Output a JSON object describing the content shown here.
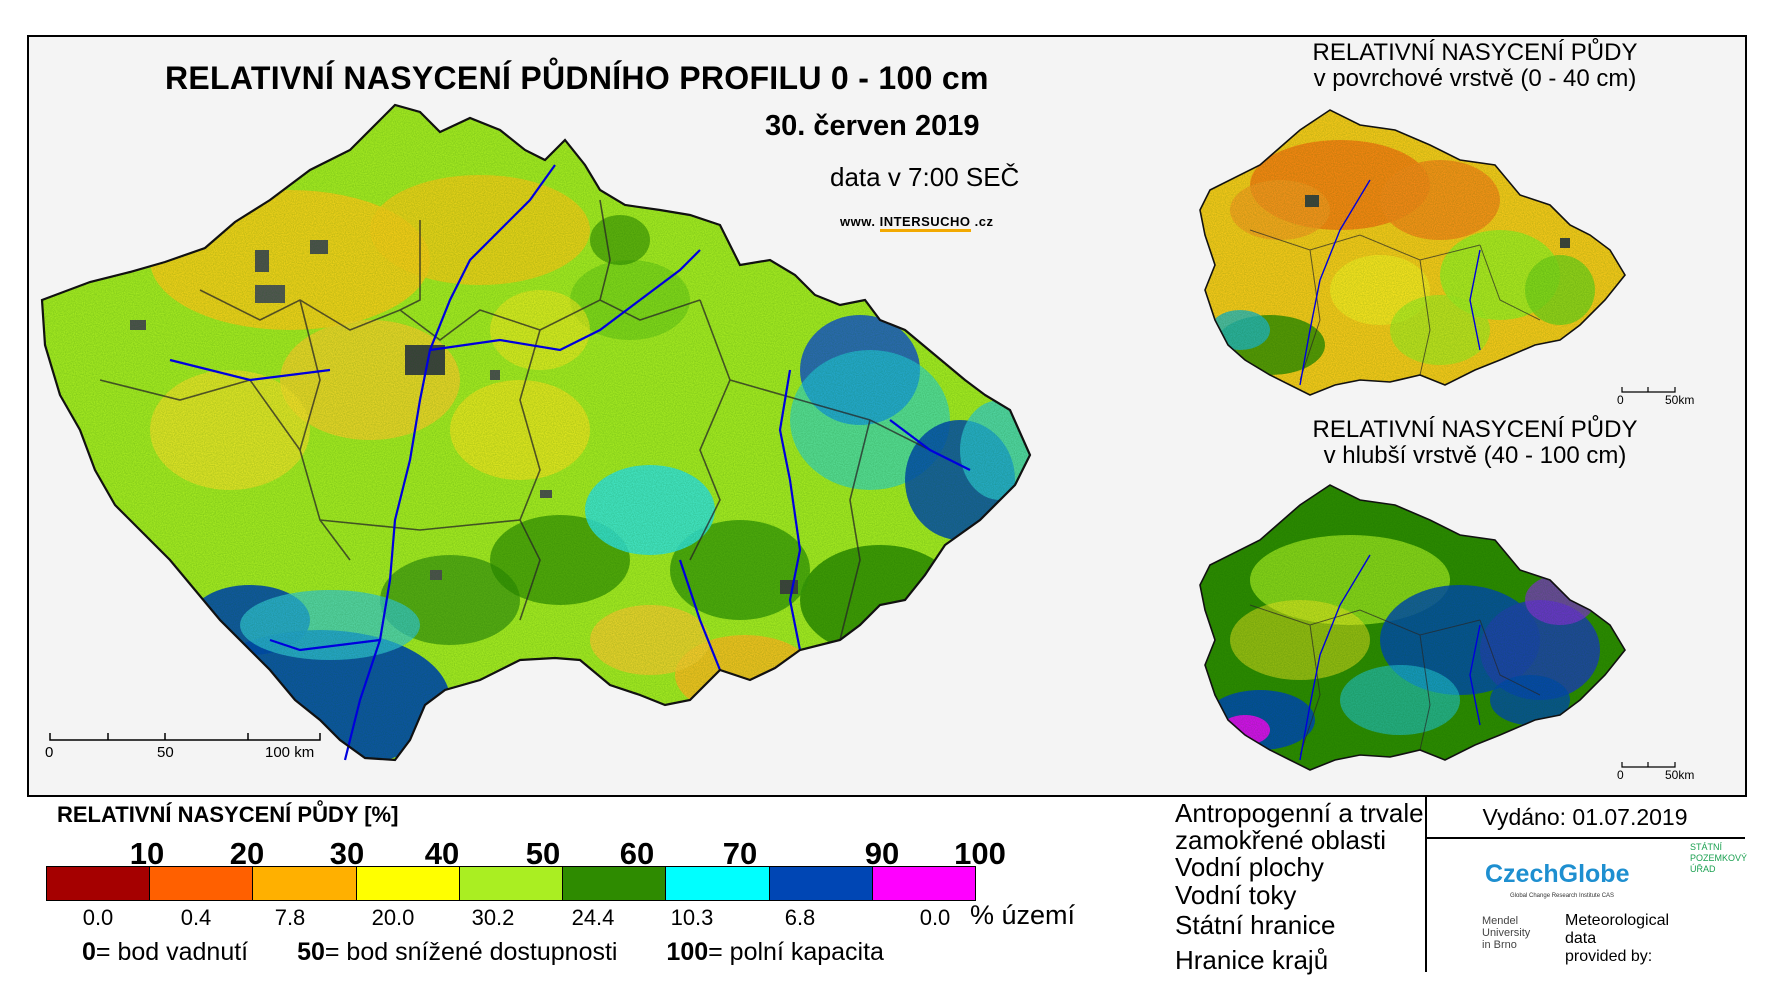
{
  "header": {
    "title": "RELATIVNÍ NASYCENÍ PŮDNÍHO PROFILU 0 - 100 cm",
    "date": "30. červen 2019",
    "time": "data v 7:00 SEČ",
    "url_prefix": "www.",
    "url_brand": "INTERSUCHO",
    "url_suffix": ".cz"
  },
  "submaps": [
    {
      "title_line1": "RELATIVNÍ NASYCENÍ PŮDY",
      "title_line2": "v povrchové vrstvě (0 - 40 cm)",
      "scale_start": "0",
      "scale_end": "50km"
    },
    {
      "title_line1": "RELATIVNÍ NASYCENÍ PŮDY",
      "title_line2": "v hlubší vrstvě (40 - 100 cm)",
      "scale_start": "0",
      "scale_end": "50km"
    }
  ],
  "main_scale": {
    "labels": [
      "0",
      "50",
      "100 km"
    ]
  },
  "legend": {
    "title": "RELATIVNÍ NASYCENÍ PŮDY [%]",
    "ticks": [
      "10",
      "20",
      "30",
      "40",
      "50",
      "60",
      "70",
      "90",
      "100"
    ],
    "colors": [
      "#a50000",
      "#ff6000",
      "#ffb000",
      "#ffff00",
      "#aaee22",
      "#2e8b00",
      "#00ffff",
      "#0046b4",
      "#ff00ff"
    ],
    "percent_values": [
      "0.0",
      "0.4",
      "7.8",
      "20.0",
      "30.2",
      "24.4",
      "10.3",
      "6.8",
      "0.0"
    ],
    "percent_unit": "% území",
    "notes": [
      {
        "value": "0",
        "text": "= bod vadnutí"
      },
      {
        "value": "50",
        "text": "= bod snížené dostupnosti"
      },
      {
        "value": "100",
        "text": "= polní kapacita"
      }
    ]
  },
  "map_key": {
    "items": [
      {
        "label_line1": "Antropogenní a trvale",
        "label_line2": "zamokřené oblasti",
        "icon": "gray-square-icon",
        "color": "#404040"
      },
      {
        "label_line1": "Vodní plochy",
        "icon": "blue-square-icon",
        "color": "#0000ff"
      },
      {
        "label_line1": "Vodní toky",
        "icon": "river-line-icon",
        "color": "#0000cc"
      },
      {
        "label_line1": "Státní hranice",
        "icon": "state-border-icon"
      },
      {
        "label_line1": "Hranice krajů",
        "icon": "region-border-icon"
      }
    ]
  },
  "issued": "Vydáno: 01.07.2019",
  "logos": {
    "czechglobe": "CzechGlobe",
    "czechglobe_sub": "Global Change Research Institute CAS",
    "szu_line1": "STÁTNÍ",
    "szu_line2": "POZEMKOVÝ",
    "szu_line3": "ÚŘAD",
    "mendel_line1": "Mendel",
    "mendel_line2": "University",
    "mendel_line3": "in Brno",
    "meteo_line1": "Meteorological",
    "meteo_line2": "data",
    "meteo_line3": "provided by:"
  }
}
